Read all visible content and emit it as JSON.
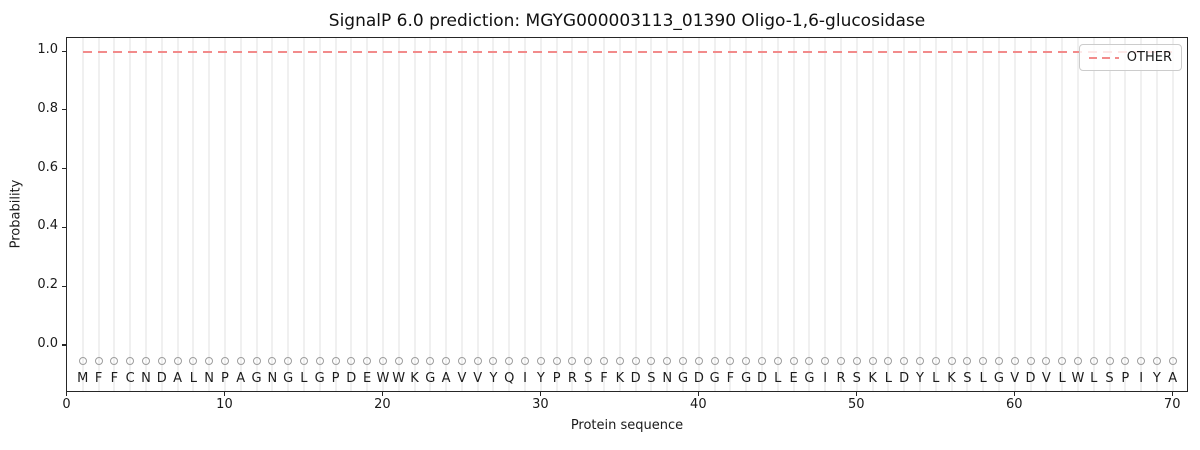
{
  "chart_data": {
    "type": "line",
    "title": "SignalP 6.0 prediction: MGYG000003113_01390 Oligo-1,6-glucosidase",
    "xlabel": "Protein sequence",
    "ylabel": "Probability",
    "xlim": [
      0,
      71
    ],
    "ylim": [
      -0.16,
      1.048
    ],
    "xticks": [
      0,
      10,
      20,
      30,
      40,
      50,
      60,
      70
    ],
    "yticks": [
      0.0,
      0.2,
      0.4,
      0.6,
      0.8,
      1.0
    ],
    "grid": {
      "vertical_per_residue": true,
      "horizontal": false,
      "color": "#f0f0f0"
    },
    "legend": {
      "position": "upper right",
      "entries": [
        {
          "label": "OTHER",
          "color": "#f28b8b",
          "line_style": "dashed"
        }
      ]
    },
    "sequence": "MFFCNDALNPAGNGLGPDEWWKGAVVYQIYPRSFKDSNGDGFGDLEGIRSKLDYLKSLGVDVLWLSPIYA",
    "sequence_markers": {
      "shape": "open-circle",
      "color": "#9e9e9e",
      "y": -0.05
    },
    "series": [
      {
        "name": "OTHER",
        "color": "#f28b8b",
        "line_style": "dashed",
        "x_start": 1,
        "values": [
          1.0,
          1.0,
          1.0,
          1.0,
          1.0,
          1.0,
          1.0,
          1.0,
          1.0,
          1.0,
          1.0,
          1.0,
          1.0,
          1.0,
          1.0,
          1.0,
          1.0,
          1.0,
          1.0,
          1.0,
          1.0,
          1.0,
          1.0,
          1.0,
          1.0,
          1.0,
          1.0,
          1.0,
          1.0,
          1.0,
          1.0,
          1.0,
          1.0,
          1.0,
          1.0,
          1.0,
          1.0,
          1.0,
          1.0,
          1.0,
          1.0,
          1.0,
          1.0,
          1.0,
          1.0,
          1.0,
          1.0,
          1.0,
          1.0,
          1.0,
          1.0,
          1.0,
          1.0,
          1.0,
          1.0,
          1.0,
          1.0,
          1.0,
          1.0,
          1.0,
          1.0,
          1.0,
          1.0,
          1.0,
          1.0,
          1.0,
          1.0,
          1.0,
          1.0,
          1.0
        ]
      }
    ]
  }
}
